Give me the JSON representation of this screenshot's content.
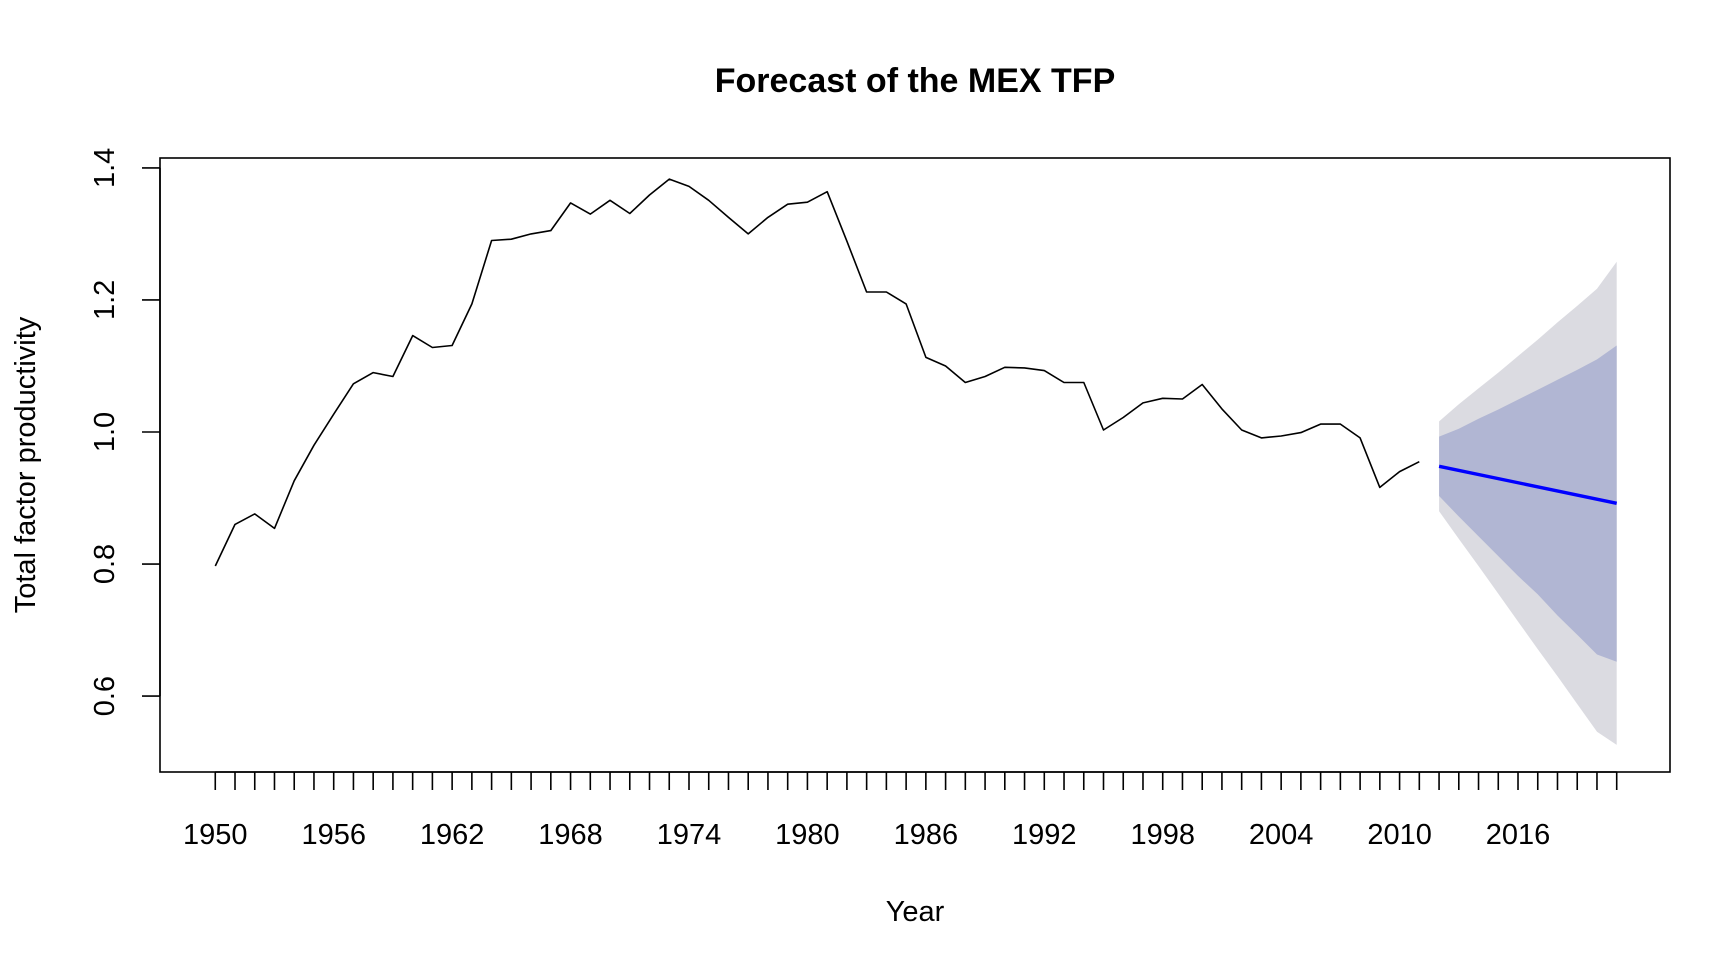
{
  "chart_data": {
    "type": "line",
    "title": "Forecast of the MEX TFP",
    "xlabel": "Year",
    "ylabel": "Total factor productivity",
    "xlim": [
      1947.2,
      2023.7
    ],
    "ylim": [
      0.485,
      1.415
    ],
    "x_ticks": [
      1950,
      1951,
      1952,
      1953,
      1954,
      1955,
      1956,
      1957,
      1958,
      1959,
      1960,
      1961,
      1962,
      1963,
      1964,
      1965,
      1966,
      1967,
      1968,
      1969,
      1970,
      1971,
      1972,
      1973,
      1974,
      1975,
      1976,
      1977,
      1978,
      1979,
      1980,
      1981,
      1982,
      1983,
      1984,
      1985,
      1986,
      1987,
      1988,
      1989,
      1990,
      1991,
      1992,
      1993,
      1994,
      1995,
      1996,
      1997,
      1998,
      1999,
      2000,
      2001,
      2002,
      2003,
      2004,
      2005,
      2006,
      2007,
      2008,
      2009,
      2010,
      2011,
      2012,
      2013,
      2014,
      2015,
      2016,
      2017,
      2018,
      2019,
      2020,
      2021
    ],
    "x_tick_labels": [
      "1950",
      "1956",
      "1962",
      "1968",
      "1974",
      "1980",
      "1986",
      "1992",
      "1998",
      "2004",
      "2010",
      "2016"
    ],
    "y_ticks": [
      0.6,
      0.8,
      1.0,
      1.2,
      1.4
    ],
    "y_tick_labels": [
      "0.6",
      "0.8",
      "1.0",
      "1.2",
      "1.4"
    ],
    "grid": false,
    "legend": "none",
    "colors": {
      "history": "#000000",
      "forecast": "#0000ff",
      "band80": "#b1b6d3",
      "band95": "#dbdbe1"
    },
    "series": [
      {
        "kind": "history",
        "x": [
          1950,
          1951,
          1952,
          1953,
          1954,
          1955,
          1956,
          1957,
          1958,
          1959,
          1960,
          1961,
          1962,
          1963,
          1964,
          1965,
          1966,
          1967,
          1968,
          1969,
          1970,
          1971,
          1972,
          1973,
          1974,
          1975,
          1976,
          1977,
          1978,
          1979,
          1980,
          1981,
          1982,
          1983,
          1984,
          1985,
          1986,
          1987,
          1988,
          1989,
          1990,
          1991,
          1992,
          1993,
          1994,
          1995,
          1996,
          1997,
          1998,
          1999,
          2000,
          2001,
          2002,
          2003,
          2004,
          2005,
          2006,
          2007,
          2008,
          2009,
          2010,
          2011
        ],
        "values": [
          0.797,
          0.86,
          0.876,
          0.854,
          0.926,
          0.98,
          1.027,
          1.073,
          1.09,
          1.084,
          1.146,
          1.128,
          1.131,
          1.194,
          1.29,
          1.292,
          1.3,
          1.305,
          1.347,
          1.33,
          1.351,
          1.331,
          1.359,
          1.383,
          1.372,
          1.351,
          1.325,
          1.3,
          1.325,
          1.345,
          1.348,
          1.364,
          1.289,
          1.212,
          1.212,
          1.194,
          1.113,
          1.1,
          1.075,
          1.084,
          1.098,
          1.097,
          1.093,
          1.075,
          1.075,
          1.003,
          1.022,
          1.044,
          1.051,
          1.05,
          1.072,
          1.035,
          1.003,
          0.991,
          0.994,
          0.999,
          1.012,
          1.012,
          0.991,
          0.916,
          0.94,
          0.955
        ]
      },
      {
        "kind": "forecast",
        "x": [
          2012,
          2021
        ],
        "values": [
          0.948,
          0.892
        ]
      }
    ],
    "bands": [
      {
        "level": "95",
        "x": [
          2012,
          2013,
          2014,
          2015,
          2016,
          2017,
          2018,
          2019,
          2020,
          2021
        ],
        "lower": [
          0.88,
          0.838,
          0.797,
          0.755,
          0.713,
          0.671,
          0.63,
          0.588,
          0.546,
          0.526
        ],
        "upper": [
          1.016,
          1.042,
          1.066,
          1.09,
          1.115,
          1.14,
          1.166,
          1.191,
          1.217,
          1.258
        ]
      },
      {
        "level": "80",
        "x": [
          2012,
          2013,
          2014,
          2015,
          2016,
          2017,
          2018,
          2019,
          2020,
          2021
        ],
        "lower": [
          0.903,
          0.872,
          0.842,
          0.812,
          0.782,
          0.754,
          0.722,
          0.693,
          0.663,
          0.652
        ],
        "upper": [
          0.993,
          1.005,
          1.02,
          1.034,
          1.049,
          1.064,
          1.079,
          1.094,
          1.11,
          1.131
        ]
      }
    ]
  }
}
